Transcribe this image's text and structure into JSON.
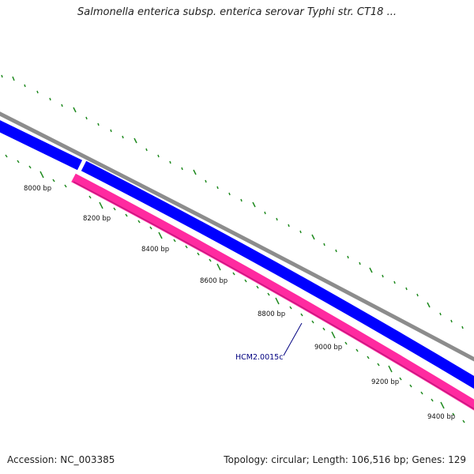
{
  "title": "Salmonella enterica subsp. enterica serovar Typhi str. CT18 ...",
  "footer": {
    "accession": "Accession: NC_003385",
    "summary": "Topology: circular; Length: 106,516 bp; Genes: 129"
  },
  "colors": {
    "backbone": "#8c8c8c",
    "forward_feature": "#0000ff",
    "reverse_feature": "#ff2aa0",
    "ticks": "#1f8a1f",
    "gene_label": "#000080"
  },
  "ruler_labels": [
    "8000 bp",
    "8200 bp",
    "8400 bp",
    "8600 bp",
    "8800 bp",
    "9000 bp",
    "9200 bp",
    "9400 bp"
  ],
  "gene_label": "HCM2.0015c"
}
